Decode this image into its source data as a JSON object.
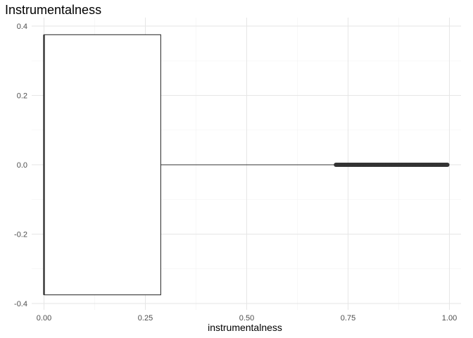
{
  "chart_data": {
    "type": "boxplot",
    "title": "Instrumentalness",
    "xlabel": "instrumentalness",
    "ylabel": "",
    "xlim": [
      -0.03,
      1.02
    ],
    "ylim": [
      -0.4,
      0.4
    ],
    "x_ticks": [
      0.0,
      0.25,
      0.5,
      0.75,
      1.0
    ],
    "x_tick_labels": [
      "0.00",
      "0.25",
      "0.50",
      "0.75",
      "1.00"
    ],
    "y_ticks": [
      -0.4,
      -0.2,
      0.0,
      0.2,
      0.4
    ],
    "y_tick_labels": [
      "-0.4",
      "-0.2",
      "0.0",
      "0.2",
      "0.4"
    ],
    "grid": true,
    "box": {
      "min": 0.0,
      "q1": 0.0,
      "median": 0.0,
      "q3": 0.288,
      "whisker_high": 0.72,
      "box_half_height": 0.375
    },
    "outliers_range": [
      0.72,
      0.995
    ]
  }
}
